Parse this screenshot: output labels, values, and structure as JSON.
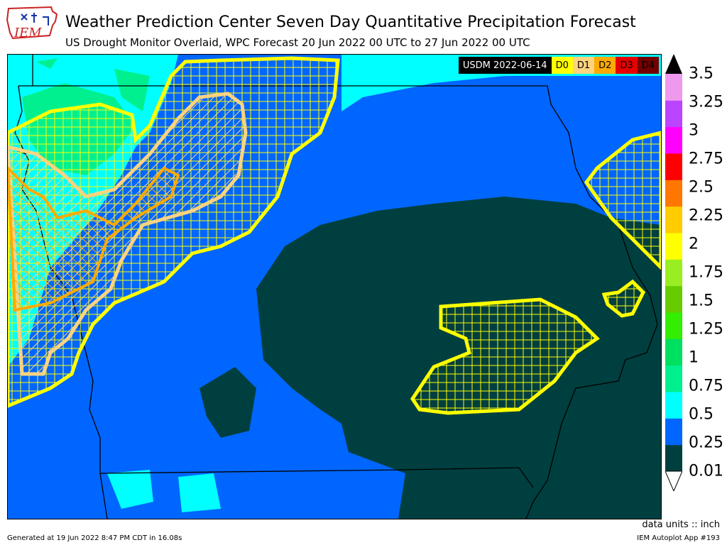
{
  "header": {
    "logo_text": "IEM",
    "title": "Weather Prediction Center Seven Day Quantitative Precipitation Forecast",
    "subtitle": "US Drought Monitor Overlaid, WPC Forecast 20 Jun 2022 00 UTC to 27 Jun 2022 00 UTC"
  },
  "drought_legend": {
    "date_label": "USDM 2022-06-14",
    "categories": [
      {
        "label": "D0",
        "color": "#ffff00"
      },
      {
        "label": "D1",
        "color": "#fcd37f"
      },
      {
        "label": "D2",
        "color": "#ffaa00"
      },
      {
        "label": "D3",
        "color": "#e60000"
      },
      {
        "label": "D4",
        "color": "#730000"
      }
    ]
  },
  "colorbar": {
    "ticks": [
      "3.5",
      "3.25",
      "3",
      "2.75",
      "2.5",
      "2.25",
      "2",
      "1.75",
      "1.5",
      "1.25",
      "1",
      "0.75",
      "0.5",
      "0.25",
      "0.01"
    ],
    "colors_bottom_to_top": [
      "#003f3f",
      "#0066ff",
      "#00ffff",
      "#00f090",
      "#00e060",
      "#33ee00",
      "#66cc00",
      "#99ee22",
      "#ffff00",
      "#ffcc00",
      "#ff7700",
      "#ff0000",
      "#ff00ff",
      "#bb44ff",
      "#ee99ee"
    ],
    "over_color": "#000000",
    "under_color": "#ffffff"
  },
  "footer": {
    "units": "data units :: inch",
    "generated": "Generated at 19 Jun 2022 8:47 PM CDT in 16.08s",
    "app": "IEM Autoplot App #193"
  }
}
